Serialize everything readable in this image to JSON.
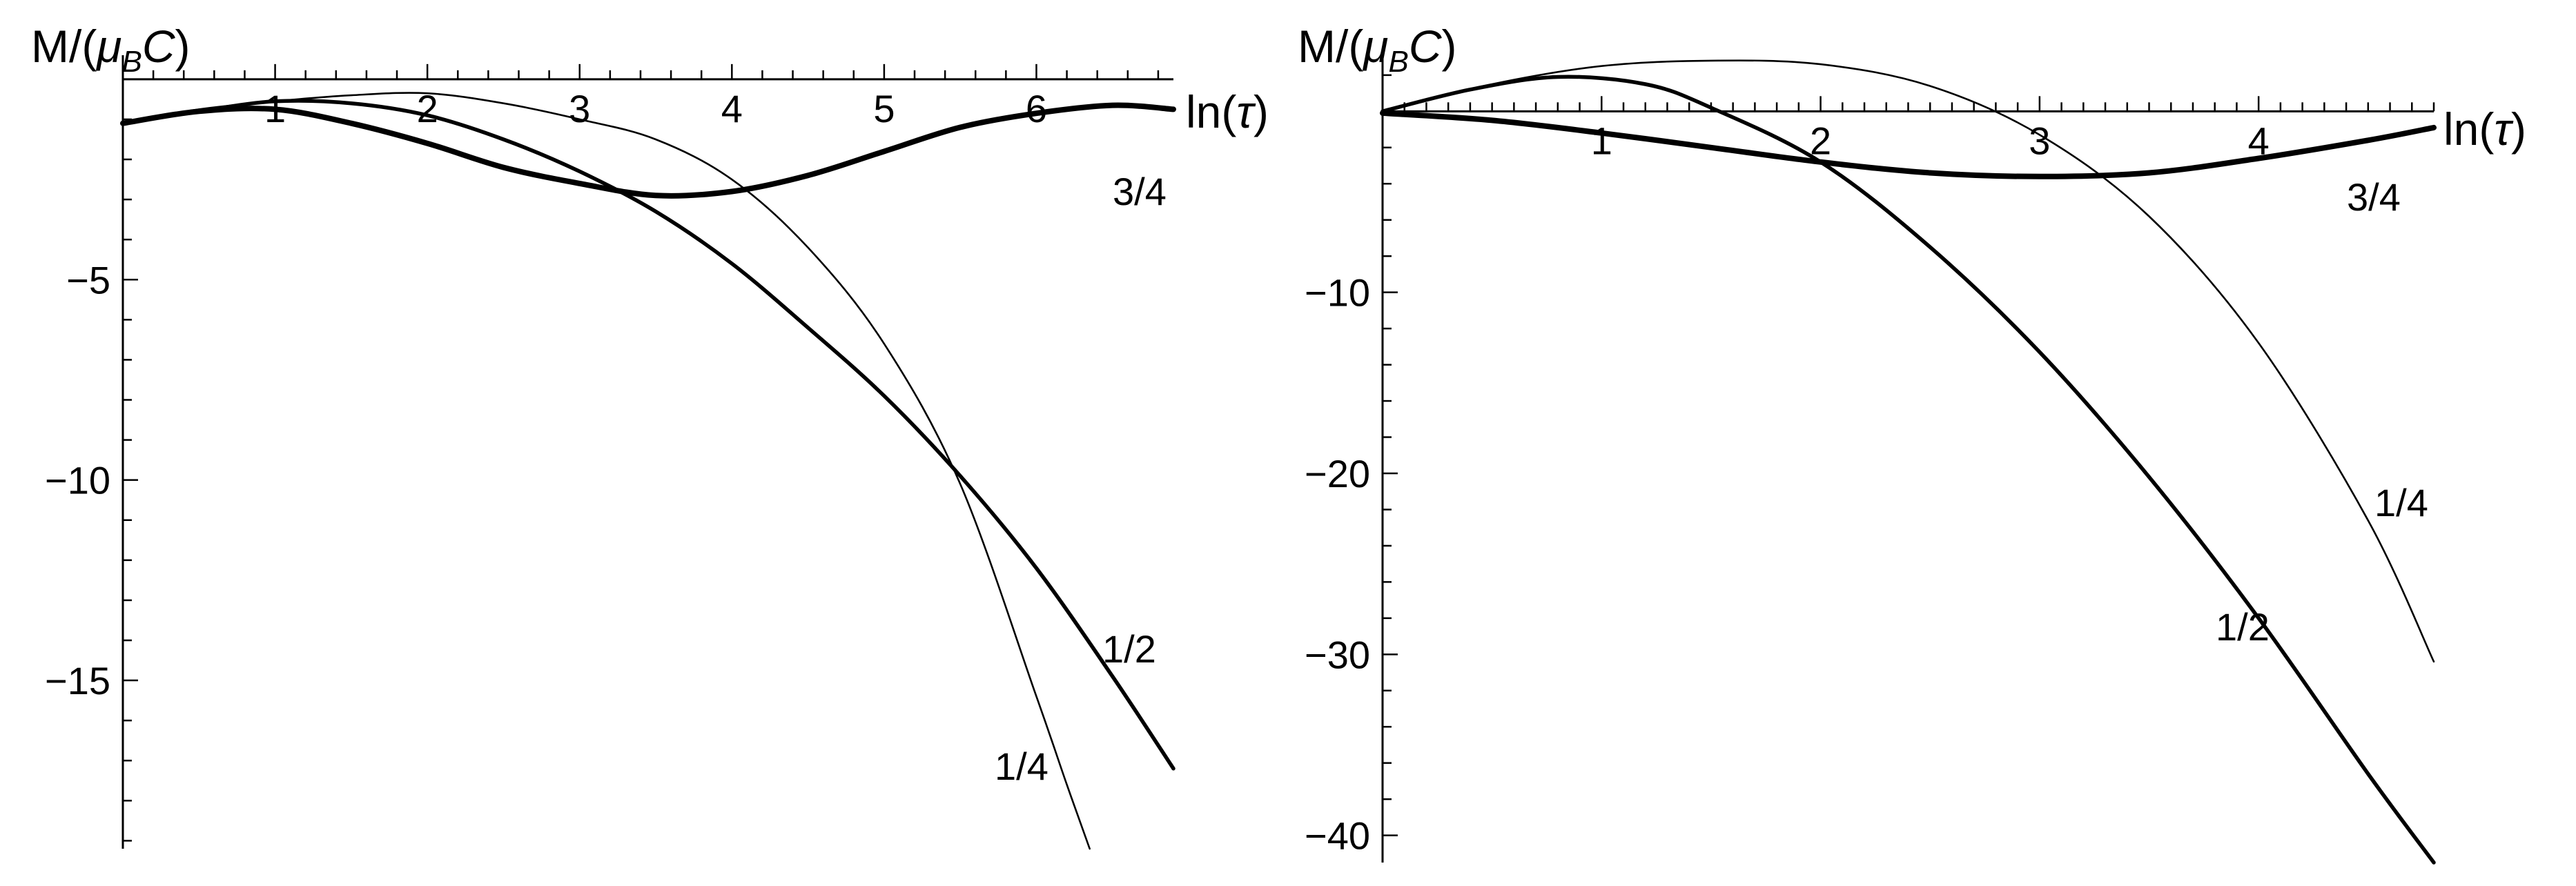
{
  "chart_data": [
    {
      "type": "line",
      "xlabel": "ln(τ)",
      "ylabel": "M/(μBC)",
      "xlim": [
        0,
        6.9
      ],
      "ylim": [
        -19.2,
        0.6
      ],
      "x_ticks": [
        1,
        2,
        3,
        4,
        5,
        6
      ],
      "y_ticks": [
        -5,
        -10,
        -15
      ],
      "series": [
        {
          "name": "3/4",
          "weight": "thick",
          "x": [
            0,
            0.5,
            1,
            1.5,
            2,
            2.5,
            3,
            3.5,
            4,
            4.5,
            5,
            5.5,
            6,
            6.5,
            6.9
          ],
          "y": [
            -1.1,
            -0.8,
            -0.75,
            -1.1,
            -1.6,
            -2.2,
            -2.6,
            -2.9,
            -2.8,
            -2.4,
            -1.8,
            -1.2,
            -0.85,
            -0.65,
            -0.75
          ]
        },
        {
          "name": "1/2",
          "weight": "medium",
          "x": [
            0,
            0.5,
            1,
            1.5,
            2,
            2.5,
            3,
            3.5,
            4,
            4.5,
            5,
            5.5,
            6,
            6.5,
            6.9
          ],
          "y": [
            -1.1,
            -0.8,
            -0.55,
            -0.6,
            -0.9,
            -1.5,
            -2.3,
            -3.3,
            -4.6,
            -6.2,
            -7.9,
            -9.9,
            -12.2,
            -14.9,
            -17.2
          ]
        },
        {
          "name": "1/4",
          "weight": "thin",
          "x": [
            0,
            0.5,
            1,
            1.5,
            2,
            2.5,
            3,
            3.5,
            4,
            4.5,
            5,
            5.5,
            6,
            6.2,
            6.35
          ],
          "y": [
            -1.1,
            -0.75,
            -0.55,
            -0.4,
            -0.35,
            -0.6,
            -1.0,
            -1.5,
            -2.5,
            -4.2,
            -6.6,
            -10.1,
            -15.4,
            -17.6,
            -19.2
          ]
        }
      ]
    },
    {
      "type": "line",
      "xlabel": "ln(τ)",
      "ylabel": "M/(μBC)",
      "xlim": [
        0,
        4.8
      ],
      "ylim": [
        -41.5,
        3.1
      ],
      "x_ticks": [
        1,
        2,
        3,
        4
      ],
      "y_ticks": [
        -10,
        -20,
        -30,
        -40
      ],
      "series": [
        {
          "name": "3/4",
          "weight": "thick",
          "x": [
            0,
            0.5,
            1,
            1.5,
            2,
            2.5,
            3,
            3.5,
            4,
            4.5,
            4.8
          ],
          "y": [
            -0.1,
            -0.5,
            -1.2,
            -2.0,
            -2.8,
            -3.4,
            -3.6,
            -3.4,
            -2.6,
            -1.6,
            -0.9
          ]
        },
        {
          "name": "1/2",
          "weight": "medium",
          "x": [
            0,
            0.4,
            0.8,
            1.2,
            1.5,
            2,
            2.5,
            3,
            3.5,
            4,
            4.5,
            4.8
          ],
          "y": [
            0,
            1.2,
            1.9,
            1.5,
            0.2,
            -2.8,
            -7.5,
            -13.3,
            -20.2,
            -28.0,
            -36.6,
            -41.5
          ]
        },
        {
          "name": "1/4",
          "weight": "thin",
          "x": [
            0,
            0.5,
            1,
            1.5,
            2,
            2.5,
            3,
            3.5,
            4,
            4.5,
            4.8
          ],
          "y": [
            0,
            1.5,
            2.5,
            2.8,
            2.6,
            1.4,
            -1.3,
            -5.8,
            -12.8,
            -22.6,
            -30.4
          ]
        }
      ]
    }
  ]
}
